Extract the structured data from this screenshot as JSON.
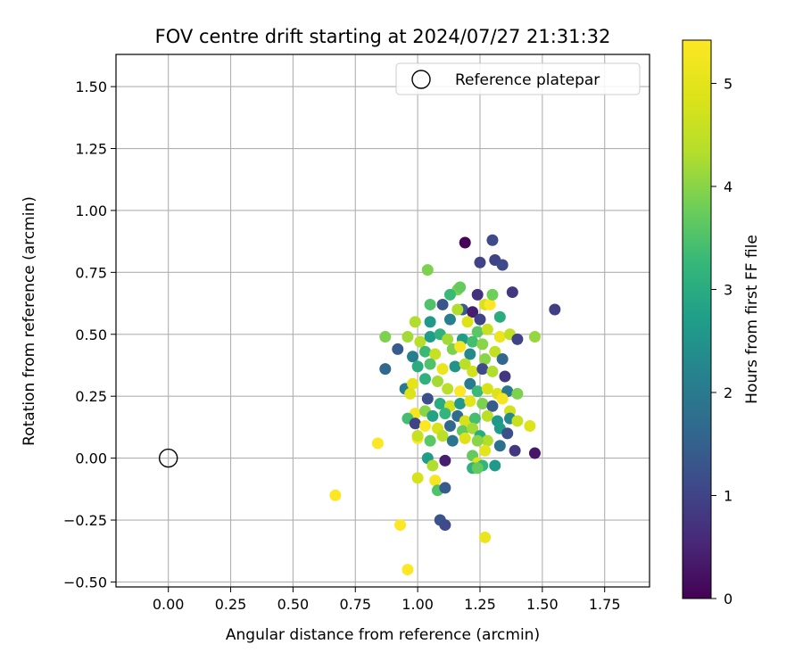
{
  "chart_data": {
    "type": "scatter",
    "title": "FOV centre drift starting at 2024/07/27 21:31:32",
    "xlabel": "Angular distance from reference (arcmin)",
    "ylabel": "Rotation from reference (arcmin)",
    "xlim": [
      -0.21,
      1.93
    ],
    "ylim": [
      -0.52,
      1.63
    ],
    "xticks": [
      "0.00",
      "0.25",
      "0.50",
      "0.75",
      "1.00",
      "1.25",
      "1.50",
      "1.75"
    ],
    "xtick_values": [
      0,
      0.25,
      0.5,
      0.75,
      1.0,
      1.25,
      1.5,
      1.75
    ],
    "yticks": [
      "−0.50",
      "−0.25",
      "0.00",
      "0.25",
      "0.50",
      "0.75",
      "1.00",
      "1.25",
      "1.50"
    ],
    "ytick_values": [
      -0.5,
      -0.25,
      0,
      0.25,
      0.5,
      0.75,
      1.0,
      1.25,
      1.5
    ],
    "grid": true,
    "legend": {
      "placement": "top-right",
      "entries": [
        "Reference platepar"
      ]
    },
    "reference_point": {
      "x": 0.0,
      "y": 0.0,
      "label": "Reference platepar"
    },
    "colorbar": {
      "label": "Hours from first FF file",
      "colormap": "viridis",
      "range": [
        0,
        5.42
      ],
      "ticks": [
        "0",
        "1",
        "2",
        "3",
        "4",
        "5"
      ],
      "tick_values": [
        0,
        1,
        2,
        3,
        4,
        5
      ]
    },
    "series": [
      {
        "points": [
          [
            1.19,
            0.87,
            0.05
          ],
          [
            1.3,
            0.88,
            1.1
          ],
          [
            1.25,
            0.79,
            1.0
          ],
          [
            1.31,
            0.8,
            1.0
          ],
          [
            1.34,
            0.78,
            1.1
          ],
          [
            1.55,
            0.6,
            0.9
          ],
          [
            1.38,
            0.67,
            0.8
          ],
          [
            1.24,
            0.66,
            0.7
          ],
          [
            1.16,
            0.68,
            3.9
          ],
          [
            1.04,
            0.76,
            3.9
          ],
          [
            1.17,
            0.69,
            3.7
          ],
          [
            1.13,
            0.66,
            3.3
          ],
          [
            1.1,
            0.62,
            1.3
          ],
          [
            1.18,
            0.6,
            1.4
          ],
          [
            1.05,
            0.62,
            3.5
          ],
          [
            1.16,
            0.6,
            4.3
          ],
          [
            1.27,
            0.62,
            4.8
          ],
          [
            1.29,
            0.62,
            5.4
          ],
          [
            1.22,
            0.59,
            0.4
          ],
          [
            1.3,
            0.66,
            3.8
          ],
          [
            1.33,
            0.57,
            3.0
          ],
          [
            1.25,
            0.56,
            1.0
          ],
          [
            0.99,
            0.55,
            4.3
          ],
          [
            1.05,
            0.55,
            2.6
          ],
          [
            1.13,
            0.56,
            2.1
          ],
          [
            1.2,
            0.55,
            4.9
          ],
          [
            1.24,
            0.51,
            3.6
          ],
          [
            1.28,
            0.52,
            4.6
          ],
          [
            0.87,
            0.49,
            3.9
          ],
          [
            0.96,
            0.49,
            4.2
          ],
          [
            1.01,
            0.47,
            4.4
          ],
          [
            1.05,
            0.49,
            2.7
          ],
          [
            1.09,
            0.5,
            3.1
          ],
          [
            1.12,
            0.48,
            4.2
          ],
          [
            1.18,
            0.48,
            2.7
          ],
          [
            1.22,
            0.47,
            3.4
          ],
          [
            1.26,
            0.46,
            4.0
          ],
          [
            1.33,
            0.49,
            5.1
          ],
          [
            1.37,
            0.5,
            4.5
          ],
          [
            1.4,
            0.48,
            1.0
          ],
          [
            1.47,
            0.49,
            4.1
          ],
          [
            0.92,
            0.44,
            1.4
          ],
          [
            0.98,
            0.41,
            2.1
          ],
          [
            1.03,
            0.43,
            3.3
          ],
          [
            1.07,
            0.42,
            4.6
          ],
          [
            1.14,
            0.44,
            3.9
          ],
          [
            1.17,
            0.45,
            5.3
          ],
          [
            1.21,
            0.42,
            2.3
          ],
          [
            1.27,
            0.4,
            4.0
          ],
          [
            1.31,
            0.43,
            4.5
          ],
          [
            1.34,
            0.4,
            1.6
          ],
          [
            0.87,
            0.36,
            1.6
          ],
          [
            1.0,
            0.37,
            3.0
          ],
          [
            1.05,
            0.38,
            3.5
          ],
          [
            1.1,
            0.36,
            5.1
          ],
          [
            1.15,
            0.37,
            2.5
          ],
          [
            1.19,
            0.38,
            4.4
          ],
          [
            1.22,
            0.35,
            4.7
          ],
          [
            1.26,
            0.36,
            1.1
          ],
          [
            1.3,
            0.35,
            4.3
          ],
          [
            1.35,
            0.33,
            0.8
          ],
          [
            0.95,
            0.28,
            2.0
          ],
          [
            0.98,
            0.3,
            5.0
          ],
          [
            1.03,
            0.32,
            3.1
          ],
          [
            1.08,
            0.31,
            4.2
          ],
          [
            1.12,
            0.28,
            4.4
          ],
          [
            1.17,
            0.27,
            5.4
          ],
          [
            1.21,
            0.3,
            2.0
          ],
          [
            1.24,
            0.27,
            3.3
          ],
          [
            1.28,
            0.28,
            4.8
          ],
          [
            1.32,
            0.26,
            4.9
          ],
          [
            1.36,
            0.27,
            2.0
          ],
          [
            1.4,
            0.26,
            3.9
          ],
          [
            0.97,
            0.26,
            4.9
          ],
          [
            1.04,
            0.24,
            1.2
          ],
          [
            1.09,
            0.22,
            3.0
          ],
          [
            1.13,
            0.21,
            4.7
          ],
          [
            1.17,
            0.22,
            2.6
          ],
          [
            1.21,
            0.23,
            5.0
          ],
          [
            1.26,
            0.22,
            3.9
          ],
          [
            1.3,
            0.21,
            1.4
          ],
          [
            1.34,
            0.24,
            5.3
          ],
          [
            1.37,
            0.19,
            4.7
          ],
          [
            0.99,
            0.18,
            5.3
          ],
          [
            1.03,
            0.19,
            4.0
          ],
          [
            1.06,
            0.17,
            2.8
          ],
          [
            1.11,
            0.18,
            3.2
          ],
          [
            1.16,
            0.17,
            1.7
          ],
          [
            1.19,
            0.15,
            4.8
          ],
          [
            1.23,
            0.16,
            3.4
          ],
          [
            1.28,
            0.17,
            4.4
          ],
          [
            1.32,
            0.15,
            2.6
          ],
          [
            1.37,
            0.16,
            2.3
          ],
          [
            1.4,
            0.15,
            4.6
          ],
          [
            0.96,
            0.16,
            3.4
          ],
          [
            0.99,
            0.14,
            1.0
          ],
          [
            1.03,
            0.13,
            5.4
          ],
          [
            1.08,
            0.12,
            4.8
          ],
          [
            1.13,
            0.13,
            1.6
          ],
          [
            1.18,
            0.11,
            3.7
          ],
          [
            1.22,
            0.12,
            4.2
          ],
          [
            1.25,
            0.09,
            3.0
          ],
          [
            1.28,
            0.07,
            4.3
          ],
          [
            1.33,
            0.12,
            2.7
          ],
          [
            1.36,
            0.1,
            1.2
          ],
          [
            1.45,
            0.13,
            4.9
          ],
          [
            1.0,
            0.08,
            5.4
          ],
          [
            1.05,
            0.07,
            3.6
          ],
          [
            1.1,
            0.09,
            4.4
          ],
          [
            1.14,
            0.07,
            1.9
          ],
          [
            1.19,
            0.08,
            4.9
          ],
          [
            1.24,
            0.07,
            4.0
          ],
          [
            1.27,
            0.03,
            5.0
          ],
          [
            1.33,
            0.05,
            1.8
          ],
          [
            1.39,
            0.03,
            0.8
          ],
          [
            1.47,
            0.02,
            0.3
          ],
          [
            0.84,
            0.06,
            5.4
          ],
          [
            1.0,
            0.09,
            4.6
          ],
          [
            1.04,
            0.0,
            2.7
          ],
          [
            1.06,
            -0.03,
            4.3
          ],
          [
            1.11,
            -0.01,
            0.4
          ],
          [
            1.22,
            0.01,
            3.7
          ],
          [
            1.24,
            -0.02,
            4.9
          ],
          [
            1.26,
            -0.03,
            3.2
          ],
          [
            1.31,
            -0.03,
            2.6
          ],
          [
            1.22,
            -0.04,
            3.1
          ],
          [
            1.24,
            -0.04,
            3.7
          ],
          [
            1.0,
            -0.08,
            4.8
          ],
          [
            1.07,
            -0.09,
            5.3
          ],
          [
            1.08,
            -0.13,
            3.5
          ],
          [
            1.11,
            -0.12,
            1.4
          ],
          [
            1.09,
            -0.25,
            1.3
          ],
          [
            1.11,
            -0.27,
            1.1
          ],
          [
            1.27,
            -0.32,
            5.1
          ],
          [
            0.67,
            -0.15,
            5.4
          ],
          [
            0.93,
            -0.27,
            5.4
          ],
          [
            0.96,
            -0.45,
            5.4
          ]
        ]
      }
    ]
  }
}
